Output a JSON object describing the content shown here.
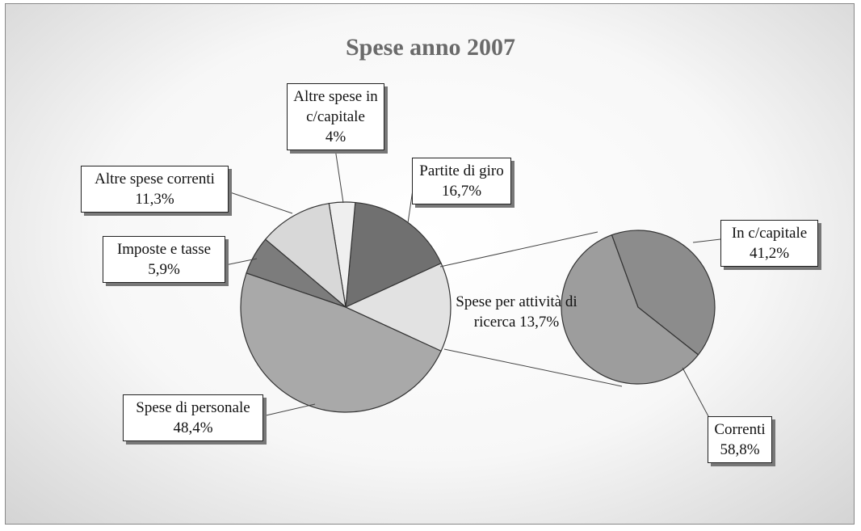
{
  "chart_data": [
    {
      "type": "pie",
      "title": "Spese anno 2007",
      "categories": [
        "Spese per attività di ricerca",
        "Spese di personale",
        "Imposte e tasse",
        "Altre spese correnti",
        "Altre spese in c/capitale",
        "Partite di giro"
      ],
      "values": [
        13.7,
        48.4,
        5.9,
        11.3,
        4,
        16.7
      ],
      "value_labels": [
        "13,7%",
        "48,4%",
        "5,9%",
        "11,3%",
        "4%",
        "16,7%"
      ],
      "colors": [
        "#e2e2e2",
        "#a9a9a9",
        "#7c7c7c",
        "#d8d8d8",
        "#efefef",
        "#707070"
      ]
    },
    {
      "type": "pie",
      "categories": [
        "In c/capitale",
        "Correnti"
      ],
      "values": [
        41.2,
        58.8
      ],
      "value_labels": [
        "41,2%",
        "58,8%"
      ],
      "colors": [
        "#8c8c8c",
        "#9d9d9d"
      ]
    }
  ]
}
